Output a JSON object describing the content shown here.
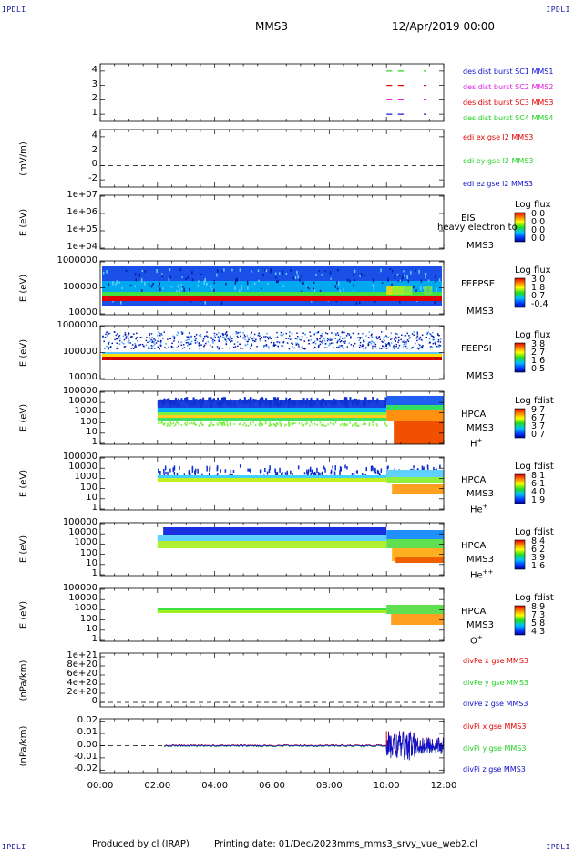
{
  "header": {
    "corner_tl": "IPDLI",
    "corner_tr": "IPDLI",
    "corner_bl": "IPDLI",
    "corner_br": "IPDLI",
    "spacecraft": "MMS3",
    "date": "12/Apr/2019 00:00"
  },
  "footer": {
    "produced_by": "Produced by cl (IRAP)",
    "printing_date": "Printing date: 01/Dec/2023",
    "filename": "mms_mms3_srvy_vue_web2.cl"
  },
  "colors": {
    "blue": "#1010d0",
    "magenta": "#e020e0",
    "red": "#e00000",
    "green": "#20d020"
  },
  "chart_data": [
    {
      "type": "line",
      "panel": "burst",
      "yticks": [
        "4",
        "3",
        "2",
        "1"
      ],
      "ylim": [
        0.5,
        4.5
      ],
      "legend": [
        {
          "name": "des dist burst SC1 MMS1",
          "color": "#1010d0"
        },
        {
          "name": "des dist burst SC2 MMS2",
          "color": "#e020e0"
        },
        {
          "name": "des dist burst SC3 MMS3",
          "color": "#e00000"
        },
        {
          "name": "des dist burst SC4 MMS4",
          "color": "#20d020"
        }
      ],
      "series": [
        {
          "name": "SC1",
          "level": 1,
          "segments": [
            [
              10.0,
              10.2
            ],
            [
              10.4,
              10.6
            ],
            [
              11.3,
              11.4
            ]
          ]
        },
        {
          "name": "SC2",
          "level": 2,
          "segments": [
            [
              10.0,
              10.2
            ],
            [
              10.4,
              10.6
            ],
            [
              11.3,
              11.4
            ]
          ]
        },
        {
          "name": "SC3",
          "level": 3,
          "segments": [
            [
              10.0,
              10.2
            ],
            [
              10.4,
              10.6
            ],
            [
              11.3,
              11.4
            ]
          ]
        },
        {
          "name": "SC4",
          "level": 4,
          "segments": [
            [
              10.0,
              10.2
            ],
            [
              10.4,
              10.6
            ],
            [
              11.3,
              11.4
            ]
          ]
        }
      ]
    },
    {
      "type": "line",
      "panel": "edi",
      "ylabel": "(mV/m)",
      "yticks": [
        "4",
        "2",
        "0",
        "-2"
      ],
      "ylim": [
        -3,
        5
      ],
      "legend": [
        {
          "name": "edi ex gse l2 MMS3",
          "color": "#e00000"
        },
        {
          "name": "edi ey gse l2 MMS3",
          "color": "#20d020"
        },
        {
          "name": "edi ez gse l2 MMS3",
          "color": "#1010d0"
        }
      ],
      "zero_line": 0
    },
    {
      "type": "heatmap",
      "panel": "eis",
      "ylabel": "E (eV)",
      "yticks": [
        "1e+07",
        "1e+06",
        "1e+05",
        "1e+04"
      ],
      "label": "EIS",
      "sublabel": "MMS3",
      "overlay_text": "heavy electron to",
      "colorbar_title": "Log flux",
      "colorbar_ticks": [
        "0.0",
        "0.0",
        "0.0",
        "0.0"
      ]
    },
    {
      "type": "heatmap",
      "panel": "feeps_e",
      "ylabel": "E (eV)",
      "yticks": [
        "1000000",
        "100000",
        "10000"
      ],
      "label": "FEEPSE",
      "sublabel": "MMS3",
      "colorbar_title": "Log flux",
      "colorbar_ticks": [
        "3.0",
        "1.8",
        "0.7",
        "-0.4"
      ]
    },
    {
      "type": "heatmap",
      "panel": "feeps_i",
      "ylabel": "E (eV)",
      "yticks": [
        "1000000",
        "100000",
        "10000"
      ],
      "label": "FEEPSI",
      "sublabel": "MMS3",
      "colorbar_title": "Log flux",
      "colorbar_ticks": [
        "3.8",
        "2.7",
        "1.6",
        "0.5"
      ]
    },
    {
      "type": "heatmap",
      "panel": "hpca_h",
      "ylabel": "E (eV)",
      "yticks": [
        "100000",
        "10000",
        "1000",
        "100",
        "10",
        "1"
      ],
      "label": "HPCA",
      "sublabel": "MMS3",
      "species": "H",
      "species_sup": "+",
      "colorbar_title": "Log fdist",
      "colorbar_ticks": [
        "9.7",
        "6.7",
        "3.7",
        "0.7"
      ]
    },
    {
      "type": "heatmap",
      "panel": "hpca_he",
      "ylabel": "E (eV)",
      "yticks": [
        "100000",
        "10000",
        "1000",
        "100",
        "10",
        "1"
      ],
      "label": "HPCA",
      "sublabel": "MMS3",
      "species": "He",
      "species_sup": "+",
      "colorbar_title": "Log fdist",
      "colorbar_ticks": [
        "8.1",
        "6.1",
        "4.0",
        "1.9"
      ]
    },
    {
      "type": "heatmap",
      "panel": "hpca_hepp",
      "ylabel": "E (eV)",
      "yticks": [
        "100000",
        "10000",
        "1000",
        "100",
        "10",
        "1"
      ],
      "label": "HPCA",
      "sublabel": "MMS3",
      "species": "He",
      "species_sup": "++",
      "colorbar_title": "Log fdist",
      "colorbar_ticks": [
        "8.4",
        "6.2",
        "3.9",
        "1.6"
      ]
    },
    {
      "type": "heatmap",
      "panel": "hpca_o",
      "ylabel": "E (eV)",
      "yticks": [
        "100000",
        "10000",
        "1000",
        "100",
        "10",
        "1"
      ],
      "label": "HPCA",
      "sublabel": "MMS3",
      "species": "O",
      "species_sup": "+",
      "colorbar_title": "Log fdist",
      "colorbar_ticks": [
        "8.9",
        "7.3",
        "5.8",
        "4.3"
      ]
    },
    {
      "type": "line",
      "panel": "divpe",
      "ylabel": "(nPa/km)",
      "yticks": [
        "1e+21",
        "8e+20",
        "6e+20",
        "4e+20",
        "2e+20",
        "0"
      ],
      "legend": [
        {
          "name": "divPe x gse MMS3",
          "color": "#e00000"
        },
        {
          "name": "divPe y gse MMS3",
          "color": "#20d020"
        },
        {
          "name": "divPe z gse MMS3",
          "color": "#1010d0"
        }
      ],
      "zero_line": 0
    },
    {
      "type": "line",
      "panel": "divpi",
      "ylabel": "(nPa/km)",
      "yticks": [
        "0.02",
        "0.01",
        "0.00",
        "-0.01",
        "-0.02"
      ],
      "ylim": [
        -0.022,
        0.022
      ],
      "legend": [
        {
          "name": "divPi x gse MMS3",
          "color": "#e00000"
        },
        {
          "name": "divPi y gse MMS3",
          "color": "#20d020"
        },
        {
          "name": "divPi z gse MMS3",
          "color": "#1010d0"
        }
      ],
      "data_start": 2.25,
      "active_start": 10.0,
      "zero_line": 0
    }
  ],
  "xaxis": {
    "ticks": [
      "00:00",
      "02:00",
      "04:00",
      "06:00",
      "08:00",
      "10:00",
      "12:00"
    ],
    "xlim": [
      0,
      12
    ]
  }
}
